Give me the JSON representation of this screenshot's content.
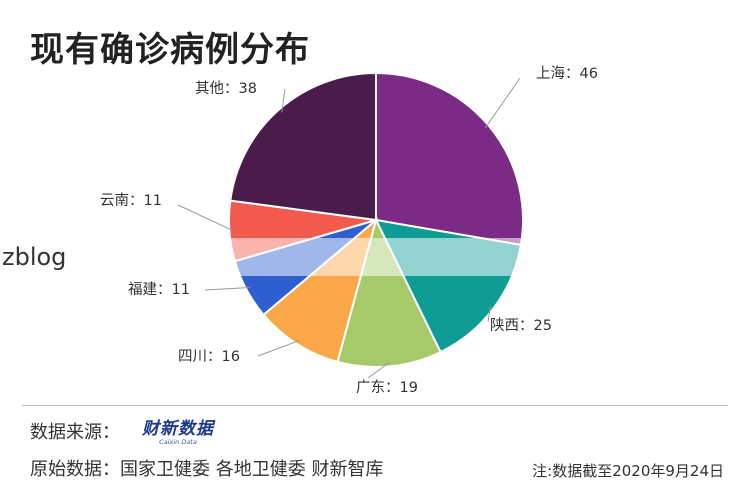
{
  "title": "现有确诊病例分布",
  "overlay_text": "zblog",
  "source_label": "数据来源：",
  "logo": {
    "main": "财新数据",
    "sub": "Caixin Data"
  },
  "origin": "原始数据：国家卫健委 各地卫健委 财新智库",
  "note": "注:数据截至2020年9月24日",
  "chart_data": {
    "type": "pie",
    "title": "现有确诊病例分布",
    "slices": [
      {
        "label": "上海",
        "value": 46,
        "color": "#7b2a86"
      },
      {
        "label": "陕西",
        "value": 25,
        "color": "#0e9c94"
      },
      {
        "label": "广东",
        "value": 19,
        "color": "#a6c96a"
      },
      {
        "label": "四川",
        "value": 16,
        "color": "#fba84a"
      },
      {
        "label": "福建",
        "value": 11,
        "color": "#2f5fcf"
      },
      {
        "label": "云南",
        "value": 11,
        "color": "#f15a4c"
      },
      {
        "label": "其他",
        "value": 38,
        "color": "#4a1c4c"
      }
    ]
  }
}
